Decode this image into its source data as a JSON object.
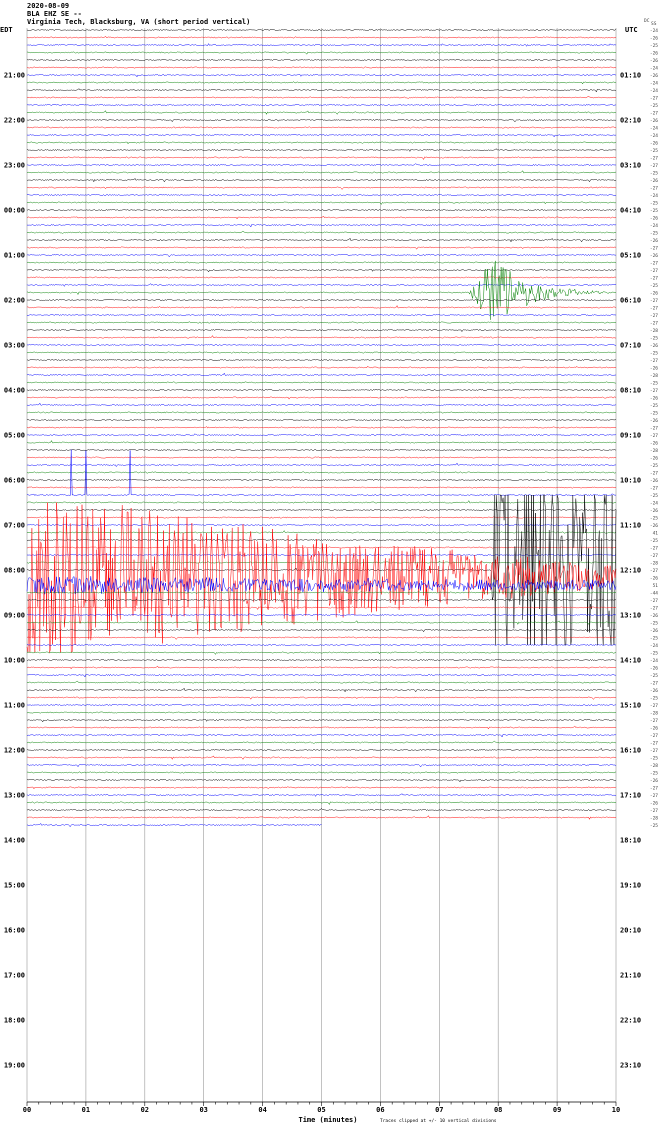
{
  "chart_data": {
    "type": "line",
    "title_lines": [
      "2020-08-09",
      "BLA EHZ SE --",
      "Virginia Tech, Blacksburg, VA (short period vertical)"
    ],
    "left_axis_label": "EDT",
    "right_axis_label": "UTC",
    "dc_header": "DC",
    "dc_header_sub": "SS",
    "xlabel": "Time (minutes)",
    "note": "Traces clipped at +/- 10 vertical divisions",
    "xlim": [
      0,
      10
    ],
    "x_ticks": [
      "00",
      "01",
      "02",
      "03",
      "04",
      "05",
      "06",
      "07",
      "08",
      "09",
      "10"
    ],
    "minutes_per_trace": 10,
    "trace_count": 107,
    "last_trace_end_minute": 5,
    "trace_colors": [
      "#000000",
      "#ff0000",
      "#0000ff",
      "#008000"
    ],
    "clip_divisions": 10,
    "edt_labels": [
      "21:00",
      "22:00",
      "23:00",
      "00:00",
      "01:00",
      "02:00",
      "03:00",
      "04:00",
      "05:00",
      "06:00",
      "07:00",
      "08:00",
      "09:00",
      "10:00",
      "11:00",
      "12:00",
      "13:00",
      "14:00",
      "15:00",
      "16:00",
      "17:00",
      "18:00",
      "19:00"
    ],
    "utc_labels": [
      "01:10",
      "02:10",
      "03:10",
      "04:10",
      "05:10",
      "06:10",
      "07:10",
      "08:10",
      "09:10",
      "10:10",
      "11:10",
      "12:10",
      "13:10",
      "14:10",
      "15:10",
      "16:10",
      "17:10",
      "18:10",
      "19:10",
      "20:10",
      "21:10",
      "22:10",
      "23:10"
    ],
    "dc_values": [
      "-24",
      "-26",
      "-25",
      "-26",
      "-26",
      "-24",
      "-26",
      "-24",
      "-24",
      "-27",
      "-25",
      "-27",
      "-26",
      "-24",
      "-24",
      "-26",
      "-25",
      "-27",
      "-27",
      "-25",
      "-26",
      "-27",
      "-24",
      "-25",
      "-25",
      "-26",
      "-24",
      "-25",
      "-26",
      "-27",
      "-26",
      "-27",
      "-27",
      "-27",
      "-25",
      "-26",
      "-27",
      "-27",
      "-27",
      "-27",
      "-28",
      "-25",
      "-26",
      "-25",
      "-27",
      "-26",
      "-28",
      "-25",
      "-27",
      "-26",
      "-25",
      "-25",
      "-26",
      "-27",
      "-27",
      "-26",
      "-28",
      "-26",
      "-25",
      "-27",
      "-26",
      "-27",
      "-25",
      "-24",
      "-26",
      "-25",
      "-26",
      "41",
      "-25",
      "-27",
      "-27",
      "-28",
      "-27",
      "-26",
      "51",
      "-44",
      "-27",
      "-27",
      "-26",
      "-25",
      "-26",
      "-25",
      "-24",
      "-25",
      "-24",
      "-26",
      "-25",
      "-27",
      "-26",
      "-25",
      "-27",
      "-28",
      "-27",
      "-26",
      "-27",
      "-27",
      "-27",
      "-25",
      "-28",
      "-25",
      "-26",
      "-27",
      "-27",
      "-26",
      "-27",
      "-28",
      "-25"
    ],
    "events": [
      {
        "name": "earthquake",
        "trace_start": "01:50 EDT",
        "color": "#008000",
        "start_minute": 7.5,
        "peak_minute": 7.9,
        "end_minute": 10,
        "peak_divisions": 5
      },
      {
        "name": "clipped-noise-red",
        "trace_start": "08:10 EDT",
        "color": "#ff0000",
        "start_minute": 0,
        "end_minute": 10,
        "peak_divisions": 10,
        "end_divisions": 1.5
      },
      {
        "name": "noise-blue",
        "trace_start": "08:20 EDT",
        "color": "#0000ff",
        "start_minute": 0,
        "end_minute": 10,
        "peak_divisions": 1.2
      },
      {
        "name": "clipped-block-black",
        "trace_start": "08:00 EDT",
        "color": "#000000",
        "start_minute": 7.9,
        "end_minute": 10,
        "peak_divisions": 10
      },
      {
        "name": "spikes-blue",
        "trace_start": "06:20 EDT",
        "color": "#0000ff",
        "spike_minutes": [
          0.75,
          1.0,
          1.75
        ],
        "peak_divisions": 6
      }
    ]
  }
}
